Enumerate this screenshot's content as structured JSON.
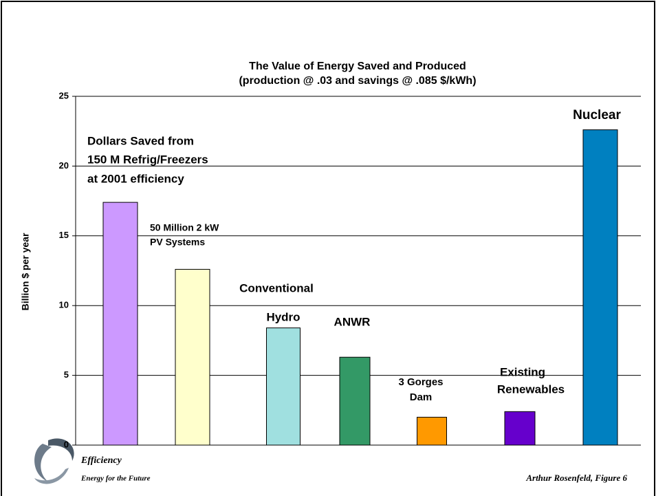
{
  "chart_data": {
    "type": "bar",
    "title": "The Value of Energy Saved and Produced",
    "subtitle": "(production @ .03 and savings @ .085 $/kWh)",
    "y_label": "Billion $ per year",
    "categories": [
      [
        "Dollars Saved from",
        "150 M Refrig/Freezers",
        "at 2001 efficiency"
      ],
      [
        "50 Million 2 kW",
        "PV Systems"
      ],
      [
        "Conventional",
        "Hydro"
      ],
      [
        "ANWR"
      ],
      [
        "3 Gorges",
        "Dam"
      ],
      [
        "Existing",
        "Renewables"
      ],
      [
        "Nuclear"
      ]
    ],
    "values": [
      17.4,
      12.6,
      8.4,
      6.3,
      2.0,
      2.4,
      22.6
    ],
    "colors": [
      "#cc99ff",
      "#ffffcc",
      "#a0e0e0",
      "#339966",
      "#ff9900",
      "#6600cc",
      "#0080c0"
    ],
    "ylim": [
      0,
      25
    ],
    "yticks": [
      0,
      5,
      10,
      15,
      20,
      25
    ],
    "grid": true
  },
  "footer": {
    "left_title": "Efficiency",
    "left_subtitle": "Energy for the Future",
    "right": "Arthur Rosenfeld, Figure 6"
  }
}
